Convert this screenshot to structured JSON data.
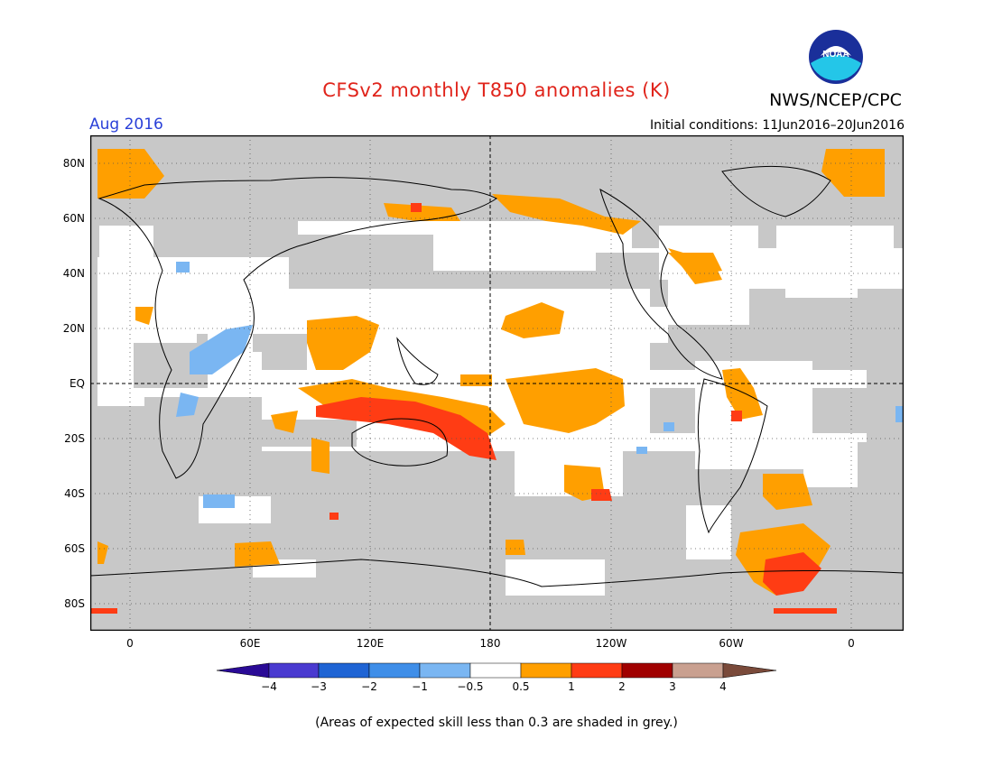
{
  "header": {
    "title": "CFSv2 monthly T850 anomalies (K)",
    "agency": "NWS/NCEP/CPC",
    "period": "Aug 2016",
    "initial_conditions": "Initial conditions: 11Jun2016–20Jun2016",
    "logo_text": "NOAA"
  },
  "map": {
    "lat_ticks": [
      "80N",
      "60N",
      "40N",
      "20N",
      "EQ",
      "20S",
      "40S",
      "60S",
      "80S"
    ],
    "lon_ticks": [
      "0",
      "60E",
      "120E",
      "180",
      "120W",
      "60W",
      "0"
    ]
  },
  "colorbar": {
    "labels": [
      "−4",
      "−3",
      "−2",
      "−1",
      "−0.5",
      "0.5",
      "1",
      "2",
      "3",
      "4"
    ],
    "colors": [
      "#2a0a96",
      "#4a3ad0",
      "#1f64d4",
      "#3f8ee8",
      "#7ab6f2",
      "#ffffff",
      "#ff9f00",
      "#ff3c14",
      "#a00000",
      "#c9a090",
      "#7a4a3a"
    ]
  },
  "legend": {
    "note": "(Areas of expected skill less than 0.3 are shaded in grey.)"
  },
  "colors": {
    "grey_mask": "#c8c8c8",
    "anomaly_orange": "#ff9f00",
    "anomaly_red": "#ff3c14",
    "anomaly_blue": "#7ab6f2",
    "title_red": "#e0241b",
    "period_blue": "#2a40d8"
  }
}
